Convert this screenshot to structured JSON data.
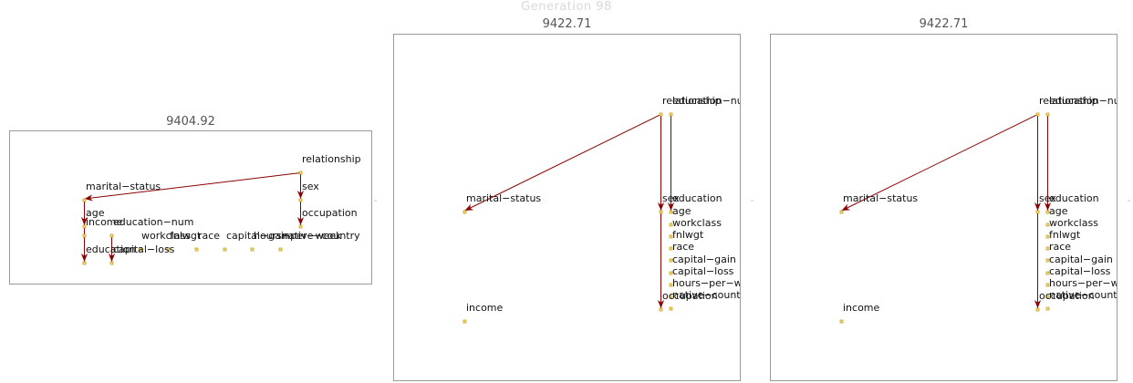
{
  "header": {
    "title": "Generation 98"
  },
  "colors": {
    "edge": "#8b0000",
    "node_fill": "#f4dd7a",
    "node_stroke": "#c9a227",
    "border": "#9a9a9a"
  },
  "panels": [
    {
      "score": "9404.92",
      "nodes": [
        "relationship",
        "marital−status",
        "sex",
        "age",
        "occupation",
        "education−num",
        "income",
        "workclass",
        "fnlwgt",
        "race",
        "capital−gain",
        "hours−per−week",
        "native−country",
        "education",
        "capital−loss"
      ],
      "edges": [
        [
          "relationship",
          "marital−status"
        ],
        [
          "relationship",
          "sex"
        ],
        [
          "sex",
          "occupation"
        ],
        [
          "marital−status",
          "age"
        ],
        [
          "age",
          "education"
        ],
        [
          "education−num",
          "capital−loss"
        ]
      ]
    },
    {
      "score": "9422.71",
      "nodes": [
        "relationship",
        "education−num",
        "marital−status",
        "sex",
        "education",
        "age",
        "workclass",
        "fnlwgt",
        "race",
        "capital−gain",
        "capital−loss",
        "hours−per−week",
        "native−country",
        "income",
        "occupation"
      ],
      "edges": [
        [
          "relationship",
          "marital−status"
        ],
        [
          "relationship",
          "sex"
        ],
        [
          "relationship",
          "occupation"
        ],
        [
          "education−num",
          "education"
        ]
      ]
    },
    {
      "score": "9422.71",
      "nodes": [
        "relationship",
        "education−num",
        "marital−status",
        "sex",
        "education",
        "age",
        "workclass",
        "fnlwgt",
        "race",
        "capital−gain",
        "capital−loss",
        "hours−per−week",
        "native−country",
        "income",
        "occupation"
      ],
      "edges": [
        [
          "relationship",
          "marital−status"
        ],
        [
          "relationship",
          "sex"
        ],
        [
          "relationship",
          "occupation"
        ],
        [
          "education−num",
          "education"
        ]
      ]
    }
  ]
}
